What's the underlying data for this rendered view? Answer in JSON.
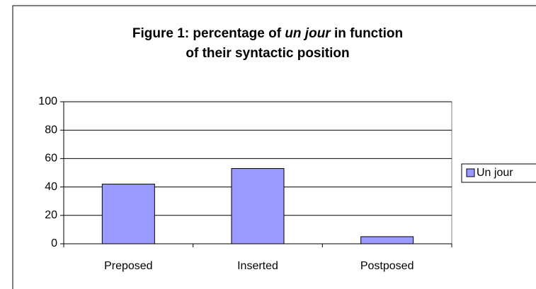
{
  "chart_data": {
    "type": "bar",
    "title": [
      "Figure 1: percentage of",
      "un jour",
      "in function",
      "of their syntactic position"
    ],
    "categories": [
      "Preposed",
      "Inserted",
      "Postposed"
    ],
    "series": [
      {
        "name": "Un jour",
        "color": "#9999ff",
        "values": [
          42,
          53,
          5
        ]
      }
    ],
    "ylim": [
      0,
      100
    ],
    "yticks": [
      0,
      20,
      40,
      60,
      80,
      100
    ],
    "grid": true,
    "legend": "right"
  }
}
